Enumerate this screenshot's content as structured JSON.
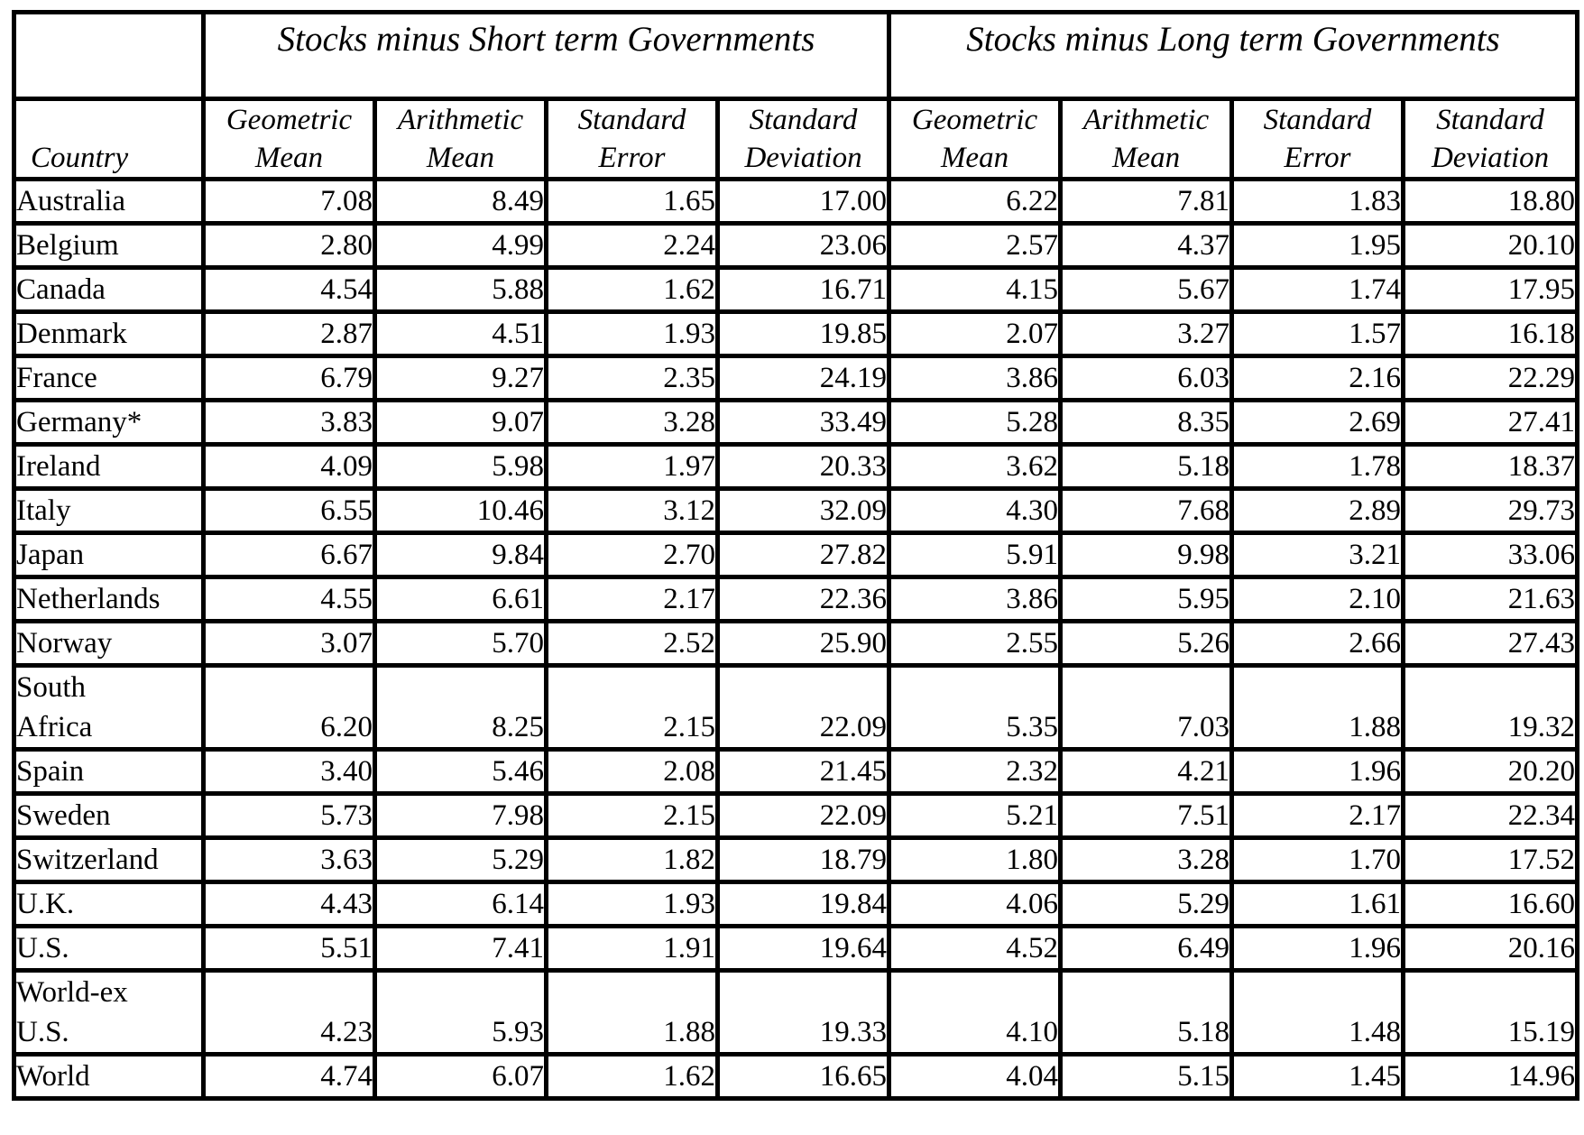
{
  "group_headers": [
    "Stocks minus Short term Governments",
    "Stocks minus Long term Governments"
  ],
  "column_headers": {
    "country": "Country",
    "stats": [
      [
        "Geometric",
        "Mean"
      ],
      [
        "Arithmetic",
        "Mean"
      ],
      [
        "Standard",
        "Error"
      ],
      [
        "Standard",
        "Deviation"
      ],
      [
        "Geometric",
        "Mean"
      ],
      [
        "Arithmetic",
        "Mean"
      ],
      [
        "Standard",
        "Error"
      ],
      [
        "Standard",
        "Deviation"
      ]
    ]
  },
  "rows": [
    {
      "country": [
        "Australia"
      ],
      "values": [
        "7.08",
        "8.49",
        "1.65",
        "17.00",
        "6.22",
        "7.81",
        "1.83",
        "18.80"
      ]
    },
    {
      "country": [
        "Belgium"
      ],
      "values": [
        "2.80",
        "4.99",
        "2.24",
        "23.06",
        "2.57",
        "4.37",
        "1.95",
        "20.10"
      ]
    },
    {
      "country": [
        "Canada"
      ],
      "values": [
        "4.54",
        "5.88",
        "1.62",
        "16.71",
        "4.15",
        "5.67",
        "1.74",
        "17.95"
      ]
    },
    {
      "country": [
        "Denmark"
      ],
      "values": [
        "2.87",
        "4.51",
        "1.93",
        "19.85",
        "2.07",
        "3.27",
        "1.57",
        "16.18"
      ]
    },
    {
      "country": [
        "France"
      ],
      "values": [
        "6.79",
        "9.27",
        "2.35",
        "24.19",
        "3.86",
        "6.03",
        "2.16",
        "22.29"
      ]
    },
    {
      "country": [
        "Germany*"
      ],
      "values": [
        "3.83",
        "9.07",
        "3.28",
        "33.49",
        "5.28",
        "8.35",
        "2.69",
        "27.41"
      ]
    },
    {
      "country": [
        "Ireland"
      ],
      "values": [
        "4.09",
        "5.98",
        "1.97",
        "20.33",
        "3.62",
        "5.18",
        "1.78",
        "18.37"
      ]
    },
    {
      "country": [
        "Italy"
      ],
      "values": [
        "6.55",
        "10.46",
        "3.12",
        "32.09",
        "4.30",
        "7.68",
        "2.89",
        "29.73"
      ]
    },
    {
      "country": [
        "Japan"
      ],
      "values": [
        "6.67",
        "9.84",
        "2.70",
        "27.82",
        "5.91",
        "9.98",
        "3.21",
        "33.06"
      ]
    },
    {
      "country": [
        "Netherlands"
      ],
      "values": [
        "4.55",
        "6.61",
        "2.17",
        "22.36",
        "3.86",
        "5.95",
        "2.10",
        "21.63"
      ]
    },
    {
      "country": [
        "Norway"
      ],
      "values": [
        "3.07",
        "5.70",
        "2.52",
        "25.90",
        "2.55",
        "5.26",
        "2.66",
        "27.43"
      ]
    },
    {
      "country": [
        "South",
        "Africa"
      ],
      "values": [
        "6.20",
        "8.25",
        "2.15",
        "22.09",
        "5.35",
        "7.03",
        "1.88",
        "19.32"
      ]
    },
    {
      "country": [
        "Spain"
      ],
      "values": [
        "3.40",
        "5.46",
        "2.08",
        "21.45",
        "2.32",
        "4.21",
        "1.96",
        "20.20"
      ]
    },
    {
      "country": [
        "Sweden"
      ],
      "values": [
        "5.73",
        "7.98",
        "2.15",
        "22.09",
        "5.21",
        "7.51",
        "2.17",
        "22.34"
      ]
    },
    {
      "country": [
        "Switzerland"
      ],
      "values": [
        "3.63",
        "5.29",
        "1.82",
        "18.79",
        "1.80",
        "3.28",
        "1.70",
        "17.52"
      ]
    },
    {
      "country": [
        "U.K."
      ],
      "values": [
        "4.43",
        "6.14",
        "1.93",
        "19.84",
        "4.06",
        "5.29",
        "1.61",
        "16.60"
      ]
    },
    {
      "country": [
        "U.S."
      ],
      "values": [
        "5.51",
        "7.41",
        "1.91",
        "19.64",
        "4.52",
        "6.49",
        "1.96",
        "20.16"
      ]
    },
    {
      "country": [
        "World-ex",
        "U.S."
      ],
      "values": [
        "4.23",
        "5.93",
        "1.88",
        "19.33",
        "4.10",
        "5.18",
        "1.48",
        "15.19"
      ]
    },
    {
      "country": [
        "World"
      ],
      "values": [
        "4.74",
        "6.07",
        "1.62",
        "16.65",
        "4.04",
        "5.15",
        "1.45",
        "14.96"
      ]
    }
  ]
}
